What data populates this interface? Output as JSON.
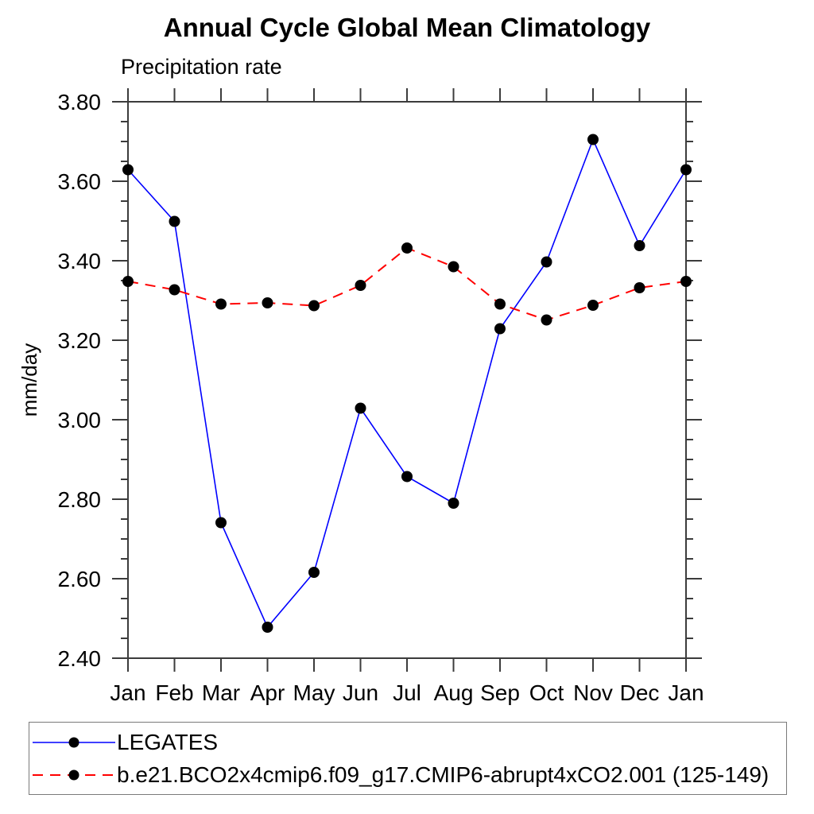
{
  "chart_data": {
    "type": "line",
    "title": "Annual Cycle Global Mean Climatology",
    "subtitle": "Precipitation rate",
    "ylabel": "mm/day",
    "x_categories": [
      "Jan",
      "Feb",
      "Mar",
      "Apr",
      "May",
      "Jun",
      "Jul",
      "Aug",
      "Sep",
      "Oct",
      "Nov",
      "Dec",
      "Jan"
    ],
    "ylim": [
      2.4,
      3.8
    ],
    "ytick_interval_major": 0.2,
    "ytick_interval_minor": 0.05,
    "ytick_labels": [
      "2.40",
      "2.60",
      "2.80",
      "3.00",
      "3.20",
      "3.40",
      "3.60",
      "3.80"
    ],
    "grid": false,
    "legend_position": "bottom",
    "axis_color": "#3c3c3c",
    "marker_color": "#000000",
    "series": [
      {
        "name": "LEGATES",
        "color": "#0000ff",
        "line_style": "solid",
        "marker": "filled-circle",
        "values": [
          3.629,
          3.499,
          2.741,
          2.478,
          2.616,
          3.029,
          2.857,
          2.79,
          3.229,
          3.397,
          3.705,
          3.438,
          3.629
        ]
      },
      {
        "name": "b.e21.BCO2x4cmip6.f09_g17.CMIP6-abrupt4xCO2.001 (125-149)",
        "color": "#ff0000",
        "line_style": "dashed",
        "marker": "filled-circle",
        "values": [
          3.348,
          3.327,
          3.291,
          3.294,
          3.287,
          3.338,
          3.432,
          3.385,
          3.291,
          3.251,
          3.288,
          3.332,
          3.348
        ]
      }
    ]
  }
}
